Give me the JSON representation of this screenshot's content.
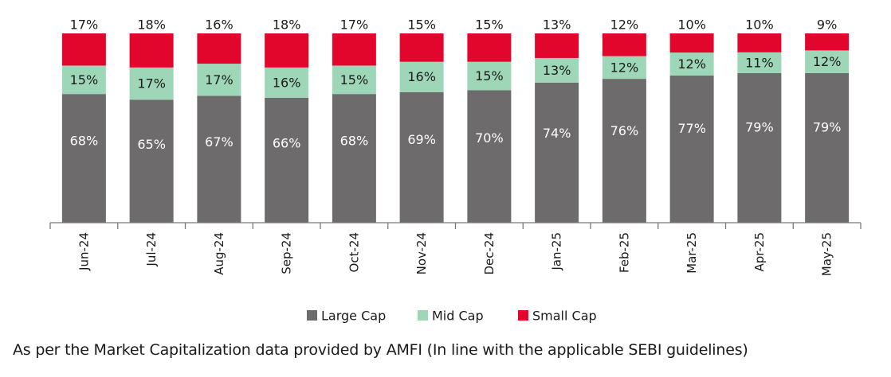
{
  "chart_data": {
    "type": "bar",
    "stacked": true,
    "percent_stacked": true,
    "categories": [
      "Jun-24",
      "Jul-24",
      "Aug-24",
      "Sep-24",
      "Oct-24",
      "Nov-24",
      "Dec-24",
      "Jan-25",
      "Feb-25",
      "Mar-25",
      "Apr-25",
      "May-25"
    ],
    "series": [
      {
        "name": "Large Cap",
        "color": "#6d6b6b",
        "values": [
          68,
          65,
          67,
          66,
          68,
          69,
          70,
          74,
          76,
          77,
          79,
          79
        ],
        "labels": [
          "68%",
          "65%",
          "67%",
          "66%",
          "68%",
          "69%",
          "70%",
          "74%",
          "76%",
          "77%",
          "79%",
          "79%"
        ]
      },
      {
        "name": "Mid Cap",
        "color": "#9dd7b8",
        "values": [
          15,
          17,
          17,
          16,
          15,
          16,
          15,
          13,
          12,
          12,
          11,
          12
        ],
        "labels": [
          "15%",
          "17%",
          "17%",
          "16%",
          "15%",
          "16%",
          "15%",
          "13%",
          "12%",
          "12%",
          "11%",
          "12%"
        ]
      },
      {
        "name": "Small Cap",
        "color": "#e2062c",
        "values": [
          17,
          18,
          16,
          18,
          17,
          15,
          15,
          13,
          12,
          10,
          10,
          9
        ],
        "labels": [
          "17%",
          "18%",
          "16%",
          "18%",
          "17%",
          "15%",
          "15%",
          "13%",
          "12%",
          "10%",
          "10%",
          "9%"
        ]
      }
    ],
    "legend_position": "bottom",
    "grid": false,
    "ylim": [
      0,
      100
    ],
    "footnote": "As per the Market Capitalization data provided by AMFI (In line with the applicable SEBI guidelines)"
  }
}
